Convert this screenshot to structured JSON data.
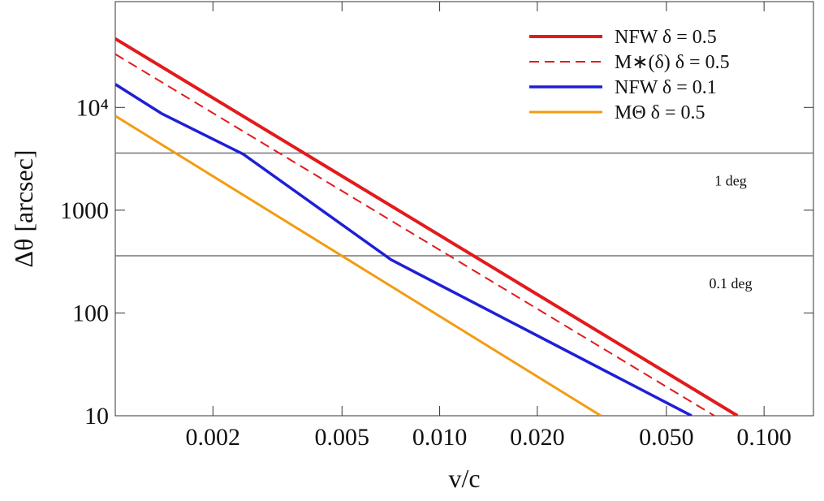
{
  "chart_data": {
    "type": "line",
    "x_label": "v/c",
    "y_label": "Δθ [arcsec]",
    "xscale": "log",
    "yscale": "log",
    "xlim": [
      0.001,
      0.142
    ],
    "ylim": [
      10,
      107000
    ],
    "xticks": [
      0.002,
      0.005,
      {
        "value": 0.01,
        "label": "0.010"
      },
      {
        "value": 0.02,
        "label": "0.020"
      },
      {
        "value": 0.05,
        "label": "0.050"
      },
      {
        "value": 0.1,
        "label": "0.100"
      }
    ],
    "yticks": [
      10,
      100,
      1000,
      {
        "value": 10000,
        "label": "10⁴"
      }
    ],
    "series": [
      {
        "name": "NFW   δ = 0.5",
        "color": "#e31a1c",
        "dash": false,
        "width": 4,
        "x": [
          0.001,
          0.0828
        ],
        "values": [
          46600,
          10
        ]
      },
      {
        "name": "M∗(δ)   δ = 0.5",
        "color": "#e31a1c",
        "dash": true,
        "width": 2,
        "x": [
          0.001,
          0.0703
        ],
        "values": [
          33000,
          10
        ]
      },
      {
        "name": "NFW   δ = 0.1",
        "color": "#1f1fd6",
        "dash": false,
        "width": 3.5,
        "x": [
          0.001,
          0.00139,
          0.00248,
          0.00708,
          0.0598
        ],
        "values": [
          16800,
          8710,
          3510,
          330,
          10
        ]
      },
      {
        "name": "MΘ      δ = 0.5",
        "color": "#f39c12",
        "dash": false,
        "width": 3,
        "x": [
          0.001,
          0.0314
        ],
        "values": [
          8260,
          10
        ]
      }
    ],
    "annotations": [
      {
        "text": "1 deg",
        "value": 3600
      },
      {
        "text": "0.1 deg",
        "value": 360
      }
    ]
  }
}
